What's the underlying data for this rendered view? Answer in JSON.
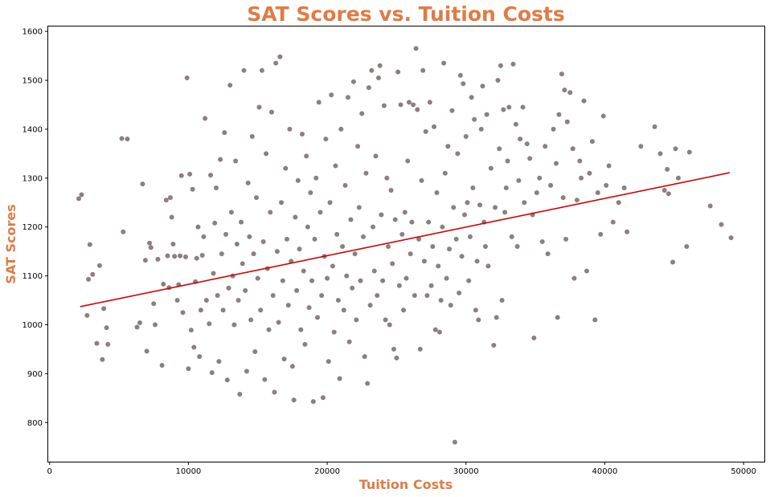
{
  "chart_data": {
    "type": "scatter",
    "title": "SAT Scores vs. Tuition Costs",
    "xlabel": "Tuition Costs",
    "ylabel": "SAT Scores",
    "xlim": [
      -100,
      51500
    ],
    "ylim": [
      720,
      1610
    ],
    "xticks": [
      0,
      10000,
      20000,
      30000,
      40000,
      50000
    ],
    "yticks": [
      800,
      900,
      1000,
      1100,
      1200,
      1300,
      1400,
      1500,
      1600
    ],
    "grid": false,
    "legend": "none",
    "point_color": "#8c7f7f",
    "line_color": "#d40000",
    "trendline": {
      "x": [
        2200,
        49000
      ],
      "y": [
        1037,
        1311
      ]
    },
    "points": [
      {
        "x": 2100,
        "y": 1258
      },
      {
        "x": 2300,
        "y": 1266
      },
      {
        "x": 2700,
        "y": 1019
      },
      {
        "x": 2800,
        "y": 1093
      },
      {
        "x": 2900,
        "y": 1164
      },
      {
        "x": 3100,
        "y": 1103
      },
      {
        "x": 3400,
        "y": 962
      },
      {
        "x": 3600,
        "y": 1121
      },
      {
        "x": 3800,
        "y": 929
      },
      {
        "x": 3900,
        "y": 1033
      },
      {
        "x": 4100,
        "y": 994
      },
      {
        "x": 4200,
        "y": 960
      },
      {
        "x": 5200,
        "y": 1381
      },
      {
        "x": 5300,
        "y": 1190
      },
      {
        "x": 5600,
        "y": 1380
      },
      {
        "x": 6300,
        "y": 995
      },
      {
        "x": 6500,
        "y": 1004
      },
      {
        "x": 6700,
        "y": 1288
      },
      {
        "x": 6900,
        "y": 1132
      },
      {
        "x": 7000,
        "y": 946
      },
      {
        "x": 7200,
        "y": 1167
      },
      {
        "x": 7300,
        "y": 1158
      },
      {
        "x": 7500,
        "y": 1043
      },
      {
        "x": 7600,
        "y": 1000
      },
      {
        "x": 7800,
        "y": 1134
      },
      {
        "x": 8100,
        "y": 917
      },
      {
        "x": 8200,
        "y": 1083
      },
      {
        "x": 8400,
        "y": 1255
      },
      {
        "x": 8500,
        "y": 1141
      },
      {
        "x": 8600,
        "y": 1076
      },
      {
        "x": 8700,
        "y": 1260
      },
      {
        "x": 8800,
        "y": 1220
      },
      {
        "x": 8900,
        "y": 1165
      },
      {
        "x": 9000,
        "y": 1140
      },
      {
        "x": 9200,
        "y": 1050
      },
      {
        "x": 9300,
        "y": 1082
      },
      {
        "x": 9400,
        "y": 1141
      },
      {
        "x": 9500,
        "y": 1305
      },
      {
        "x": 9600,
        "y": 1025
      },
      {
        "x": 9800,
        "y": 1139
      },
      {
        "x": 9900,
        "y": 1505
      },
      {
        "x": 10000,
        "y": 910
      },
      {
        "x": 10100,
        "y": 1308
      },
      {
        "x": 10200,
        "y": 989
      },
      {
        "x": 10300,
        "y": 1277
      },
      {
        "x": 10400,
        "y": 954
      },
      {
        "x": 10500,
        "y": 1088
      },
      {
        "x": 10600,
        "y": 1136
      },
      {
        "x": 10700,
        "y": 1200
      },
      {
        "x": 10800,
        "y": 935
      },
      {
        "x": 10900,
        "y": 1030
      },
      {
        "x": 11000,
        "y": 1142
      },
      {
        "x": 11100,
        "y": 1180
      },
      {
        "x": 11200,
        "y": 1422
      },
      {
        "x": 11300,
        "y": 1050
      },
      {
        "x": 11500,
        "y": 1002
      },
      {
        "x": 11600,
        "y": 1306
      },
      {
        "x": 11700,
        "y": 902
      },
      {
        "x": 11800,
        "y": 1105
      },
      {
        "x": 11900,
        "y": 1208
      },
      {
        "x": 12000,
        "y": 1280
      },
      {
        "x": 12100,
        "y": 1060
      },
      {
        "x": 12200,
        "y": 925
      },
      {
        "x": 12300,
        "y": 1338
      },
      {
        "x": 12400,
        "y": 1145
      },
      {
        "x": 12500,
        "y": 1030
      },
      {
        "x": 12600,
        "y": 1393
      },
      {
        "x": 12700,
        "y": 1185
      },
      {
        "x": 12800,
        "y": 887
      },
      {
        "x": 12900,
        "y": 1075
      },
      {
        "x": 13000,
        "y": 1490
      },
      {
        "x": 13100,
        "y": 1230
      },
      {
        "x": 13200,
        "y": 1100
      },
      {
        "x": 13300,
        "y": 1000
      },
      {
        "x": 13400,
        "y": 1335
      },
      {
        "x": 13500,
        "y": 1165
      },
      {
        "x": 13600,
        "y": 1050
      },
      {
        "x": 13700,
        "y": 858
      },
      {
        "x": 13800,
        "y": 1210
      },
      {
        "x": 13900,
        "y": 1125
      },
      {
        "x": 14000,
        "y": 1520
      },
      {
        "x": 14100,
        "y": 1070
      },
      {
        "x": 14200,
        "y": 905
      },
      {
        "x": 14300,
        "y": 1290
      },
      {
        "x": 14400,
        "y": 1180
      },
      {
        "x": 14500,
        "y": 1010
      },
      {
        "x": 14600,
        "y": 1385
      },
      {
        "x": 14700,
        "y": 1145
      },
      {
        "x": 14800,
        "y": 945
      },
      {
        "x": 14900,
        "y": 1260
      },
      {
        "x": 15000,
        "y": 1095
      },
      {
        "x": 15100,
        "y": 1445
      },
      {
        "x": 15200,
        "y": 1030
      },
      {
        "x": 15300,
        "y": 1520
      },
      {
        "x": 15400,
        "y": 1170
      },
      {
        "x": 15500,
        "y": 888
      },
      {
        "x": 15600,
        "y": 1350
      },
      {
        "x": 15700,
        "y": 1115
      },
      {
        "x": 15800,
        "y": 990
      },
      {
        "x": 15900,
        "y": 1230
      },
      {
        "x": 16000,
        "y": 1435
      },
      {
        "x": 16100,
        "y": 1060
      },
      {
        "x": 16200,
        "y": 862
      },
      {
        "x": 16300,
        "y": 1535
      },
      {
        "x": 16400,
        "y": 1150
      },
      {
        "x": 16500,
        "y": 1005
      },
      {
        "x": 16600,
        "y": 1548
      },
      {
        "x": 16700,
        "y": 1250
      },
      {
        "x": 16800,
        "y": 1090
      },
      {
        "x": 16900,
        "y": 930
      },
      {
        "x": 17000,
        "y": 1320
      },
      {
        "x": 17100,
        "y": 1175
      },
      {
        "x": 17200,
        "y": 1040
      },
      {
        "x": 17300,
        "y": 1400
      },
      {
        "x": 17400,
        "y": 1130
      },
      {
        "x": 17500,
        "y": 915
      },
      {
        "x": 17600,
        "y": 846
      },
      {
        "x": 17700,
        "y": 1220
      },
      {
        "x": 17800,
        "y": 1070
      },
      {
        "x": 17900,
        "y": 1295
      },
      {
        "x": 18000,
        "y": 1155
      },
      {
        "x": 18100,
        "y": 990
      },
      {
        "x": 18200,
        "y": 1390
      },
      {
        "x": 18300,
        "y": 1110
      },
      {
        "x": 18400,
        "y": 960
      },
      {
        "x": 18500,
        "y": 1345
      },
      {
        "x": 18600,
        "y": 1200
      },
      {
        "x": 18700,
        "y": 1035
      },
      {
        "x": 18800,
        "y": 1270
      },
      {
        "x": 18900,
        "y": 1090
      },
      {
        "x": 19000,
        "y": 843
      },
      {
        "x": 19100,
        "y": 1175
      },
      {
        "x": 19200,
        "y": 1300
      },
      {
        "x": 19300,
        "y": 1015
      },
      {
        "x": 19400,
        "y": 1455
      },
      {
        "x": 19500,
        "y": 1230
      },
      {
        "x": 19600,
        "y": 1060
      },
      {
        "x": 19700,
        "y": 851
      },
      {
        "x": 19800,
        "y": 1140
      },
      {
        "x": 19900,
        "y": 1380
      },
      {
        "x": 20000,
        "y": 1095
      },
      {
        "x": 20100,
        "y": 925
      },
      {
        "x": 20200,
        "y": 1250
      },
      {
        "x": 20300,
        "y": 1470
      },
      {
        "x": 20400,
        "y": 1120
      },
      {
        "x": 20500,
        "y": 985
      },
      {
        "x": 20600,
        "y": 1325
      },
      {
        "x": 20700,
        "y": 1185
      },
      {
        "x": 20800,
        "y": 1050
      },
      {
        "x": 20900,
        "y": 890
      },
      {
        "x": 21000,
        "y": 1400
      },
      {
        "x": 21100,
        "y": 1160
      },
      {
        "x": 21200,
        "y": 1030
      },
      {
        "x": 21300,
        "y": 1285
      },
      {
        "x": 21400,
        "y": 1100
      },
      {
        "x": 21500,
        "y": 1465
      },
      {
        "x": 21600,
        "y": 965
      },
      {
        "x": 21700,
        "y": 1215
      },
      {
        "x": 21800,
        "y": 1075
      },
      {
        "x": 21900,
        "y": 1497
      },
      {
        "x": 22000,
        "y": 1145
      },
      {
        "x": 22100,
        "y": 1010
      },
      {
        "x": 22200,
        "y": 1365
      },
      {
        "x": 22300,
        "y": 1240
      },
      {
        "x": 22400,
        "y": 1090
      },
      {
        "x": 22500,
        "y": 1432
      },
      {
        "x": 22600,
        "y": 1180
      },
      {
        "x": 22700,
        "y": 935
      },
      {
        "x": 22800,
        "y": 1310
      },
      {
        "x": 22900,
        "y": 880
      },
      {
        "x": 23000,
        "y": 1485
      },
      {
        "x": 23100,
        "y": 1040
      },
      {
        "x": 23200,
        "y": 1520
      },
      {
        "x": 23300,
        "y": 1200
      },
      {
        "x": 23400,
        "y": 1110
      },
      {
        "x": 23500,
        "y": 1345
      },
      {
        "x": 23600,
        "y": 1060
      },
      {
        "x": 23700,
        "y": 1505
      },
      {
        "x": 23800,
        "y": 1530
      },
      {
        "x": 23900,
        "y": 1225
      },
      {
        "x": 24000,
        "y": 1090
      },
      {
        "x": 24100,
        "y": 1448
      },
      {
        "x": 24200,
        "y": 1010
      },
      {
        "x": 24300,
        "y": 1300
      },
      {
        "x": 24400,
        "y": 1160
      },
      {
        "x": 24500,
        "y": 1000
      },
      {
        "x": 24600,
        "y": 1275
      },
      {
        "x": 24700,
        "y": 1125
      },
      {
        "x": 24800,
        "y": 950
      },
      {
        "x": 24900,
        "y": 1215
      },
      {
        "x": 25000,
        "y": 932
      },
      {
        "x": 25100,
        "y": 1517
      },
      {
        "x": 25200,
        "y": 1080
      },
      {
        "x": 25300,
        "y": 1450
      },
      {
        "x": 25400,
        "y": 1185
      },
      {
        "x": 25500,
        "y": 1030
      },
      {
        "x": 25600,
        "y": 1230
      },
      {
        "x": 25700,
        "y": 1095
      },
      {
        "x": 25800,
        "y": 1335
      },
      {
        "x": 25900,
        "y": 1455
      },
      {
        "x": 26000,
        "y": 1145
      },
      {
        "x": 26100,
        "y": 1210
      },
      {
        "x": 26200,
        "y": 1450
      },
      {
        "x": 26300,
        "y": 1060
      },
      {
        "x": 26400,
        "y": 1565
      },
      {
        "x": 26500,
        "y": 1440
      },
      {
        "x": 26600,
        "y": 1175
      },
      {
        "x": 26700,
        "y": 950
      },
      {
        "x": 26800,
        "y": 1295
      },
      {
        "x": 26900,
        "y": 1520
      },
      {
        "x": 27000,
        "y": 1130
      },
      {
        "x": 27100,
        "y": 1395
      },
      {
        "x": 27200,
        "y": 1060
      },
      {
        "x": 27300,
        "y": 1210
      },
      {
        "x": 27400,
        "y": 1455
      },
      {
        "x": 27500,
        "y": 1080
      },
      {
        "x": 27600,
        "y": 1160
      },
      {
        "x": 27700,
        "y": 1405
      },
      {
        "x": 27800,
        "y": 990
      },
      {
        "x": 27900,
        "y": 1270
      },
      {
        "x": 28000,
        "y": 1120
      },
      {
        "x": 28100,
        "y": 985
      },
      {
        "x": 28200,
        "y": 1050
      },
      {
        "x": 28300,
        "y": 1200
      },
      {
        "x": 28400,
        "y": 1535
      },
      {
        "x": 28500,
        "y": 1310
      },
      {
        "x": 28600,
        "y": 1095
      },
      {
        "x": 28700,
        "y": 1365
      },
      {
        "x": 28800,
        "y": 1155
      },
      {
        "x": 28900,
        "y": 1040
      },
      {
        "x": 29000,
        "y": 1438
      },
      {
        "x": 29100,
        "y": 1240
      },
      {
        "x": 29200,
        "y": 760
      },
      {
        "x": 29300,
        "y": 1175
      },
      {
        "x": 29400,
        "y": 1350
      },
      {
        "x": 29500,
        "y": 1065
      },
      {
        "x": 29600,
        "y": 1510
      },
      {
        "x": 29700,
        "y": 1140
      },
      {
        "x": 29800,
        "y": 1493
      },
      {
        "x": 29900,
        "y": 1225
      },
      {
        "x": 30000,
        "y": 1385
      },
      {
        "x": 30100,
        "y": 1250
      },
      {
        "x": 30200,
        "y": 1090
      },
      {
        "x": 30300,
        "y": 1180
      },
      {
        "x": 30400,
        "y": 1465
      },
      {
        "x": 30500,
        "y": 1280
      },
      {
        "x": 30600,
        "y": 1420
      },
      {
        "x": 30700,
        "y": 1030
      },
      {
        "x": 30800,
        "y": 1130
      },
      {
        "x": 30900,
        "y": 1010
      },
      {
        "x": 31000,
        "y": 1245
      },
      {
        "x": 31100,
        "y": 1400
      },
      {
        "x": 31200,
        "y": 1488
      },
      {
        "x": 31300,
        "y": 1210
      },
      {
        "x": 31400,
        "y": 1160
      },
      {
        "x": 31500,
        "y": 1430
      },
      {
        "x": 31600,
        "y": 1120
      },
      {
        "x": 31800,
        "y": 1320
      },
      {
        "x": 32000,
        "y": 958
      },
      {
        "x": 32100,
        "y": 1240
      },
      {
        "x": 32200,
        "y": 1015
      },
      {
        "x": 32300,
        "y": 1500
      },
      {
        "x": 32400,
        "y": 1360
      },
      {
        "x": 32500,
        "y": 1530
      },
      {
        "x": 32600,
        "y": 1050
      },
      {
        "x": 32700,
        "y": 1440
      },
      {
        "x": 32800,
        "y": 1230
      },
      {
        "x": 32900,
        "y": 1280
      },
      {
        "x": 33000,
        "y": 1335
      },
      {
        "x": 33100,
        "y": 1445
      },
      {
        "x": 33300,
        "y": 1180
      },
      {
        "x": 33400,
        "y": 1533
      },
      {
        "x": 33600,
        "y": 1410
      },
      {
        "x": 33700,
        "y": 1160
      },
      {
        "x": 33800,
        "y": 1295
      },
      {
        "x": 33900,
        "y": 1380
      },
      {
        "x": 34100,
        "y": 1445
      },
      {
        "x": 34200,
        "y": 1250
      },
      {
        "x": 34400,
        "y": 1370
      },
      {
        "x": 34600,
        "y": 1340
      },
      {
        "x": 34800,
        "y": 1225
      },
      {
        "x": 34900,
        "y": 973
      },
      {
        "x": 35100,
        "y": 1270
      },
      {
        "x": 35300,
        "y": 1300
      },
      {
        "x": 35500,
        "y": 1170
      },
      {
        "x": 35700,
        "y": 1365
      },
      {
        "x": 35900,
        "y": 1145
      },
      {
        "x": 36100,
        "y": 1285
      },
      {
        "x": 36300,
        "y": 1400
      },
      {
        "x": 36500,
        "y": 1330
      },
      {
        "x": 36600,
        "y": 1015
      },
      {
        "x": 36700,
        "y": 1430
      },
      {
        "x": 36900,
        "y": 1513
      },
      {
        "x": 37000,
        "y": 1260
      },
      {
        "x": 37100,
        "y": 1480
      },
      {
        "x": 37200,
        "y": 1175
      },
      {
        "x": 37300,
        "y": 1415
      },
      {
        "x": 37500,
        "y": 1475
      },
      {
        "x": 37700,
        "y": 1360
      },
      {
        "x": 37800,
        "y": 1095
      },
      {
        "x": 38000,
        "y": 1255
      },
      {
        "x": 38200,
        "y": 1335
      },
      {
        "x": 38300,
        "y": 1300
      },
      {
        "x": 38500,
        "y": 1458
      },
      {
        "x": 38700,
        "y": 1110
      },
      {
        "x": 38900,
        "y": 1310
      },
      {
        "x": 39100,
        "y": 1375
      },
      {
        "x": 39300,
        "y": 1010
      },
      {
        "x": 39500,
        "y": 1270
      },
      {
        "x": 39700,
        "y": 1185
      },
      {
        "x": 39900,
        "y": 1427
      },
      {
        "x": 40100,
        "y": 1285
      },
      {
        "x": 40300,
        "y": 1325
      },
      {
        "x": 40600,
        "y": 1210
      },
      {
        "x": 41000,
        "y": 1250
      },
      {
        "x": 41400,
        "y": 1280
      },
      {
        "x": 41600,
        "y": 1190
      },
      {
        "x": 42600,
        "y": 1365
      },
      {
        "x": 43600,
        "y": 1405
      },
      {
        "x": 44000,
        "y": 1350
      },
      {
        "x": 44300,
        "y": 1275
      },
      {
        "x": 44500,
        "y": 1318
      },
      {
        "x": 44600,
        "y": 1268
      },
      {
        "x": 44900,
        "y": 1128
      },
      {
        "x": 45100,
        "y": 1360
      },
      {
        "x": 45300,
        "y": 1300
      },
      {
        "x": 45900,
        "y": 1160
      },
      {
        "x": 46100,
        "y": 1353
      },
      {
        "x": 47600,
        "y": 1243
      },
      {
        "x": 48400,
        "y": 1205
      },
      {
        "x": 49100,
        "y": 1178
      }
    ]
  }
}
